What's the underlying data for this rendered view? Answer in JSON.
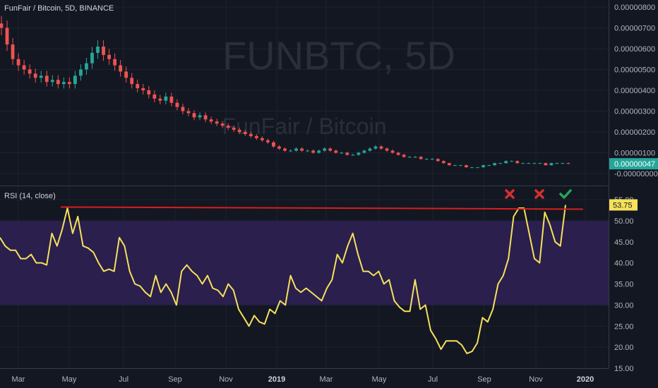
{
  "header": {
    "symbol_label": "FunFair / Bitcoin, 5D, BINANCE",
    "watermark_symbol": "FUNBTC, 5D",
    "watermark_name": "FunFair / Bitcoin"
  },
  "rsi_header": {
    "label": "RSI (14, close)"
  },
  "price_axis": {
    "ticks": [
      "0.00000800",
      "0.00000700",
      "0.00000600",
      "0.00000500",
      "0.00000400",
      "0.00000300",
      "0.00000200",
      "0.00000100",
      "-0.00000000"
    ],
    "last_price_label": "0.00000047"
  },
  "rsi_axis": {
    "ticks": [
      "55.00",
      "50.00",
      "45.00",
      "40.00",
      "35.00",
      "30.00",
      "25.00",
      "20.00",
      "15.00"
    ],
    "last_value_label": "53.75"
  },
  "time_axis": {
    "labels": [
      "Mar",
      "May",
      "Jul",
      "Sep",
      "Nov",
      "2019",
      "Mar",
      "May",
      "Jul",
      "Sep",
      "Nov",
      "2020"
    ]
  },
  "colors": {
    "up": "#26a69a",
    "down": "#ef5350",
    "rsi_line": "#f5e15a",
    "band_fill": "#2a1f4d",
    "resistance": "#d81e1e",
    "cross": "#d32f2f",
    "check": "#26a65b"
  },
  "annotations": {
    "icons": [
      "cross-icon",
      "cross-icon",
      "check-icon"
    ],
    "resistance_level": 53
  },
  "chart_data": [
    {
      "type": "candlestick",
      "title": "FunFair / Bitcoin, 5D, BINANCE",
      "ylim": [
        -1e-07,
        8.2e-06
      ],
      "close": [
        7e-06,
        6.2e-06,
        5.5e-06,
        5.2e-06,
        5e-06,
        4.8e-06,
        4.6e-06,
        4.7e-06,
        4.4e-06,
        4.5e-06,
        4.3e-06,
        4.4e-06,
        4.3e-06,
        4.7e-06,
        5e-06,
        5.3e-06,
        5.8e-06,
        6.1e-06,
        5.7e-06,
        5.5e-06,
        5.2e-06,
        4.9e-06,
        4.6e-06,
        4.3e-06,
        4.1e-06,
        4e-06,
        3.8e-06,
        3.6e-06,
        3.5e-06,
        3.7e-06,
        3.4e-06,
        3.2e-06,
        3e-06,
        2.9e-06,
        2.7e-06,
        2.8e-06,
        2.6e-06,
        2.5e-06,
        2.4e-06,
        2.3e-06,
        2.2e-06,
        2.1e-06,
        2e-06,
        1.9e-06,
        1.8e-06,
        1.7e-06,
        1.6e-06,
        1.5e-06,
        1.3e-06,
        1.2e-06,
        1.1e-06,
        1.1e-06,
        1.2e-06,
        1.1e-06,
        1.1e-06,
        1e-06,
        1.1e-06,
        1.2e-06,
        1.1e-06,
        1e-06,
        1e-06,
        9e-07,
        9e-07,
        1e-06,
        1.1e-06,
        1.2e-06,
        1.3e-06,
        1.2e-06,
        1.1e-06,
        1e-06,
        9e-07,
        8e-07,
        8e-07,
        8e-07,
        7e-07,
        7e-07,
        7e-07,
        6e-07,
        5e-07,
        4e-07,
        4e-07,
        4e-07,
        3e-07,
        3e-07,
        3e-07,
        4e-07,
        4e-07,
        5e-07,
        5e-07,
        6e-07,
        6e-07,
        5e-07,
        5e-07,
        5e-07,
        5e-07,
        5e-07,
        4e-07,
        5e-07,
        5e-07,
        5e-07,
        4.7e-07
      ]
    },
    {
      "type": "line",
      "title": "RSI (14, close)",
      "ylim": [
        15,
        57
      ],
      "band": [
        30,
        50
      ],
      "series": [
        {
          "name": "RSI (14, close)",
          "values": [
            46,
            44,
            43,
            43,
            41,
            41,
            42,
            40,
            40,
            39.5,
            47,
            44,
            48,
            53,
            47,
            51,
            44,
            43.5,
            42.5,
            40,
            38,
            38.5,
            38,
            46,
            44,
            38,
            35,
            34.5,
            33,
            32,
            37,
            33,
            35,
            33,
            30,
            38,
            39.5,
            38,
            37,
            35,
            37,
            34,
            33.5,
            32,
            35,
            33.5,
            29,
            27,
            25,
            27.5,
            26,
            25.5,
            29,
            28,
            31,
            30,
            37,
            34,
            33,
            34,
            33,
            32,
            31,
            34,
            36,
            42,
            40,
            44,
            47,
            42,
            38,
            38,
            37,
            38,
            35,
            36,
            31,
            29.5,
            28.5,
            28.5,
            36,
            29,
            30,
            24,
            22,
            19.5,
            21.5,
            21.5,
            21.5,
            20.5,
            18.5,
            19,
            21,
            27,
            26,
            29,
            35,
            37,
            41,
            51,
            53,
            53,
            47,
            41,
            40,
            52,
            49,
            45,
            44,
            53.75
          ]
        }
      ]
    }
  ]
}
